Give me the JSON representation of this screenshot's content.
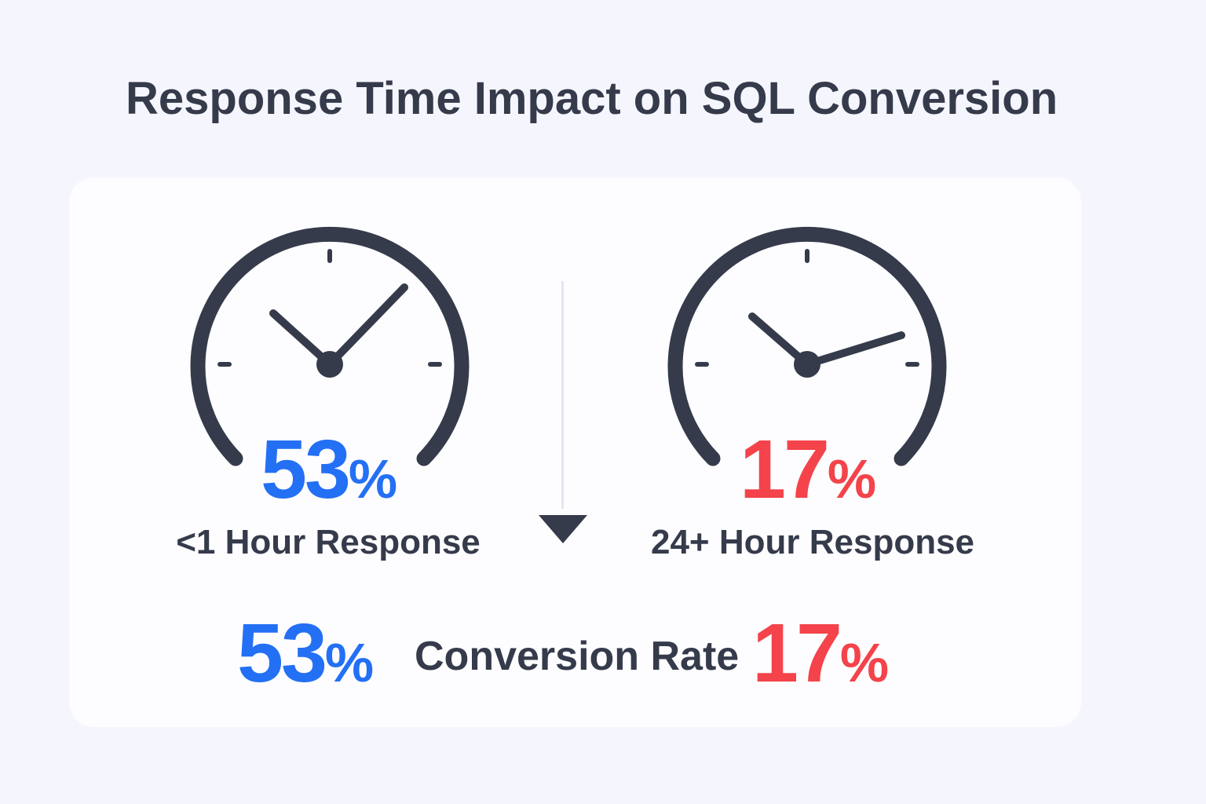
{
  "title": "Response Time Impact on SQL Conversion",
  "colors": {
    "fast": "#2470f5",
    "slow": "#f4434a",
    "ink": "#353b4b"
  },
  "fast": {
    "value": "53",
    "symbol": "%",
    "label": "<1 Hour Response",
    "gauge_icon": "clock-gauge-icon"
  },
  "slow": {
    "value": "17",
    "symbol": "%",
    "label": "24+ Hour Response",
    "gauge_icon": "clock-gauge-icon"
  },
  "summary": {
    "fast_value": "53",
    "fast_symbol": "%",
    "label": "Conversion Rate",
    "slow_value": "17",
    "slow_symbol": "%"
  },
  "divider_icon": "arrow-down-icon"
}
